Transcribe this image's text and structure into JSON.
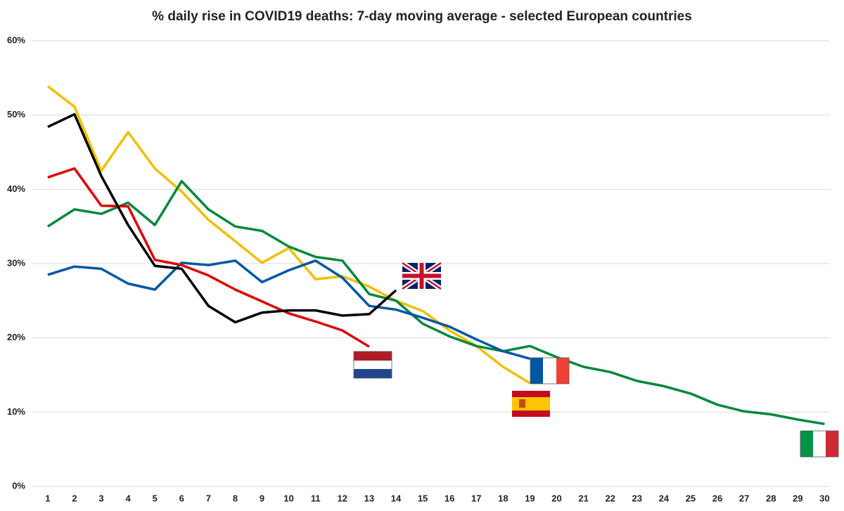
{
  "chart_data": {
    "type": "line",
    "title": "% daily rise in COVID19 deaths: 7-day moving average - selected European countries",
    "x": [
      1,
      2,
      3,
      4,
      5,
      6,
      7,
      8,
      9,
      10,
      11,
      12,
      13,
      14,
      15,
      16,
      17,
      18,
      19,
      20,
      21,
      22,
      23,
      24,
      25,
      26,
      27,
      28,
      29,
      30
    ],
    "xlim": [
      0.4,
      30.2
    ],
    "xticks": [
      1,
      2,
      3,
      4,
      5,
      6,
      7,
      8,
      9,
      10,
      11,
      12,
      13,
      14,
      15,
      16,
      17,
      18,
      19,
      20,
      21,
      22,
      23,
      24,
      25,
      26,
      27,
      28,
      29,
      30
    ],
    "ylim": [
      0,
      60
    ],
    "yticks": [
      {
        "value": 0,
        "label": "0%"
      },
      {
        "value": 10,
        "label": "10%"
      },
      {
        "value": 20,
        "label": "20%"
      },
      {
        "value": 30,
        "label": "30%"
      },
      {
        "value": 40,
        "label": "40%"
      },
      {
        "value": 50,
        "label": "50%"
      },
      {
        "value": 60,
        "label": "60%"
      }
    ],
    "grid": true,
    "series": [
      {
        "color": "#f0c000",
        "values": [
          53.9,
          51.1,
          42.5,
          47.7,
          42.8,
          39.7,
          35.9,
          33.0,
          30.1,
          32.1,
          27.9,
          28.3,
          26.9,
          25.0,
          23.6,
          21.0,
          18.9,
          16.1,
          13.9,
          null,
          null,
          null,
          null,
          null,
          null,
          null,
          null,
          null,
          null,
          null
        ]
      },
      {
        "color": "#00883a",
        "values": [
          35.0,
          37.3,
          36.7,
          38.2,
          35.2,
          41.1,
          37.3,
          35.0,
          34.4,
          32.3,
          30.9,
          30.4,
          25.9,
          25.0,
          21.9,
          20.2,
          18.9,
          18.2,
          18.9,
          17.4,
          16.1,
          15.4,
          14.2,
          13.5,
          12.5,
          11.0,
          10.1,
          9.7,
          9.0,
          8.4
        ]
      },
      {
        "color": "#0056a6",
        "values": [
          28.5,
          29.6,
          29.3,
          27.3,
          26.5,
          30.1,
          29.8,
          30.4,
          27.5,
          29.1,
          30.4,
          28.1,
          24.3,
          23.8,
          22.7,
          21.5,
          19.8,
          18.2,
          17.2,
          null,
          null,
          null,
          null,
          null,
          null,
          null,
          null,
          null,
          null,
          null
        ]
      },
      {
        "color": "#e00000",
        "values": [
          41.6,
          42.8,
          37.8,
          37.7,
          30.5,
          29.8,
          28.4,
          26.5,
          24.9,
          23.3,
          22.2,
          21.0,
          18.8,
          null,
          null,
          null,
          null,
          null,
          null,
          null,
          null,
          null,
          null,
          null,
          null,
          null,
          null,
          null,
          null,
          null
        ]
      },
      {
        "color": "#000000",
        "values": [
          48.4,
          50.1,
          41.8,
          35.2,
          29.7,
          29.3,
          24.3,
          22.1,
          23.4,
          23.7,
          23.7,
          23.0,
          23.2,
          26.4,
          null,
          null,
          null,
          null,
          null,
          null,
          null,
          null,
          null,
          null,
          null,
          null,
          null,
          null,
          null,
          null
        ]
      }
    ]
  }
}
